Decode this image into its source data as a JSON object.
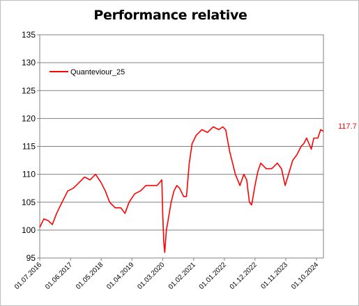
{
  "chart_data": {
    "type": "line",
    "title": "Performance relative",
    "xlabel": "",
    "ylabel": "",
    "ylim": [
      95,
      135
    ],
    "yticks": [
      95,
      100,
      105,
      110,
      115,
      120,
      125,
      130,
      135
    ],
    "xlim": [
      "2016-07-01",
      "2024-12-15"
    ],
    "xticks": [
      "01.07.2016",
      "01.06.2017",
      "01.05.2018",
      "01.04.2019",
      "01.03.2020",
      "01.02.2021",
      "01.01.2022",
      "01.12.2022",
      "01.11.2023",
      "01.10.2024"
    ],
    "grid": true,
    "legend": "top-left",
    "end_value_label": "117.7",
    "colors": {
      "series": "#ff0000",
      "grid": "#808080",
      "axis": "#808080",
      "background": "#ffffff"
    },
    "series": [
      {
        "name": "Quanteviour_25",
        "x": [
          "2016-07-01",
          "2016-08-15",
          "2016-10-01",
          "2016-11-15",
          "2017-01-01",
          "2017-03-01",
          "2017-05-01",
          "2017-07-01",
          "2017-09-01",
          "2017-11-01",
          "2018-01-01",
          "2018-03-01",
          "2018-05-01",
          "2018-06-15",
          "2018-08-01",
          "2018-10-01",
          "2018-12-01",
          "2019-01-15",
          "2019-03-01",
          "2019-05-01",
          "2019-07-01",
          "2019-09-01",
          "2019-11-01",
          "2020-01-01",
          "2020-02-20",
          "2020-03-01",
          "2020-03-12",
          "2020-03-23",
          "2020-04-10",
          "2020-05-01",
          "2020-06-01",
          "2020-07-01",
          "2020-08-01",
          "2020-09-01",
          "2020-10-15",
          "2020-11-15",
          "2020-12-15",
          "2021-01-15",
          "2021-03-01",
          "2021-05-01",
          "2021-07-01",
          "2021-09-01",
          "2021-11-01",
          "2021-12-15",
          "2022-01-15",
          "2022-03-01",
          "2022-04-01",
          "2022-05-01",
          "2022-06-20",
          "2022-08-01",
          "2022-09-01",
          "2022-10-01",
          "2022-10-25",
          "2022-12-01",
          "2023-01-01",
          "2023-02-01",
          "2023-04-01",
          "2023-06-01",
          "2023-08-01",
          "2023-09-15",
          "2023-10-25",
          "2023-12-01",
          "2024-01-15",
          "2024-03-01",
          "2024-04-15",
          "2024-05-15",
          "2024-06-15",
          "2024-08-05",
          "2024-09-01",
          "2024-10-15",
          "2024-11-15",
          "2024-12-15"
        ],
        "values": [
          100.5,
          102.0,
          101.7,
          101.0,
          103.0,
          105.0,
          107.0,
          107.5,
          108.5,
          109.5,
          109.0,
          110.0,
          108.5,
          107.0,
          105.0,
          104.0,
          104.0,
          103.0,
          105.0,
          106.5,
          107.0,
          108.0,
          108.0,
          108.0,
          109.0,
          103.0,
          98.0,
          96.0,
          100.0,
          102.0,
          105.0,
          107.0,
          108.0,
          107.5,
          106.0,
          106.0,
          112.0,
          115.5,
          117.0,
          118.0,
          117.5,
          118.5,
          118.0,
          118.5,
          118.0,
          114.0,
          112.0,
          110.0,
          108.0,
          110.0,
          109.0,
          105.0,
          104.5,
          108.0,
          110.5,
          112.0,
          111.0,
          111.0,
          112.0,
          111.0,
          108.0,
          110.0,
          112.5,
          113.5,
          115.0,
          115.5,
          116.5,
          114.5,
          116.5,
          116.5,
          118.0,
          117.7
        ]
      }
    ]
  }
}
